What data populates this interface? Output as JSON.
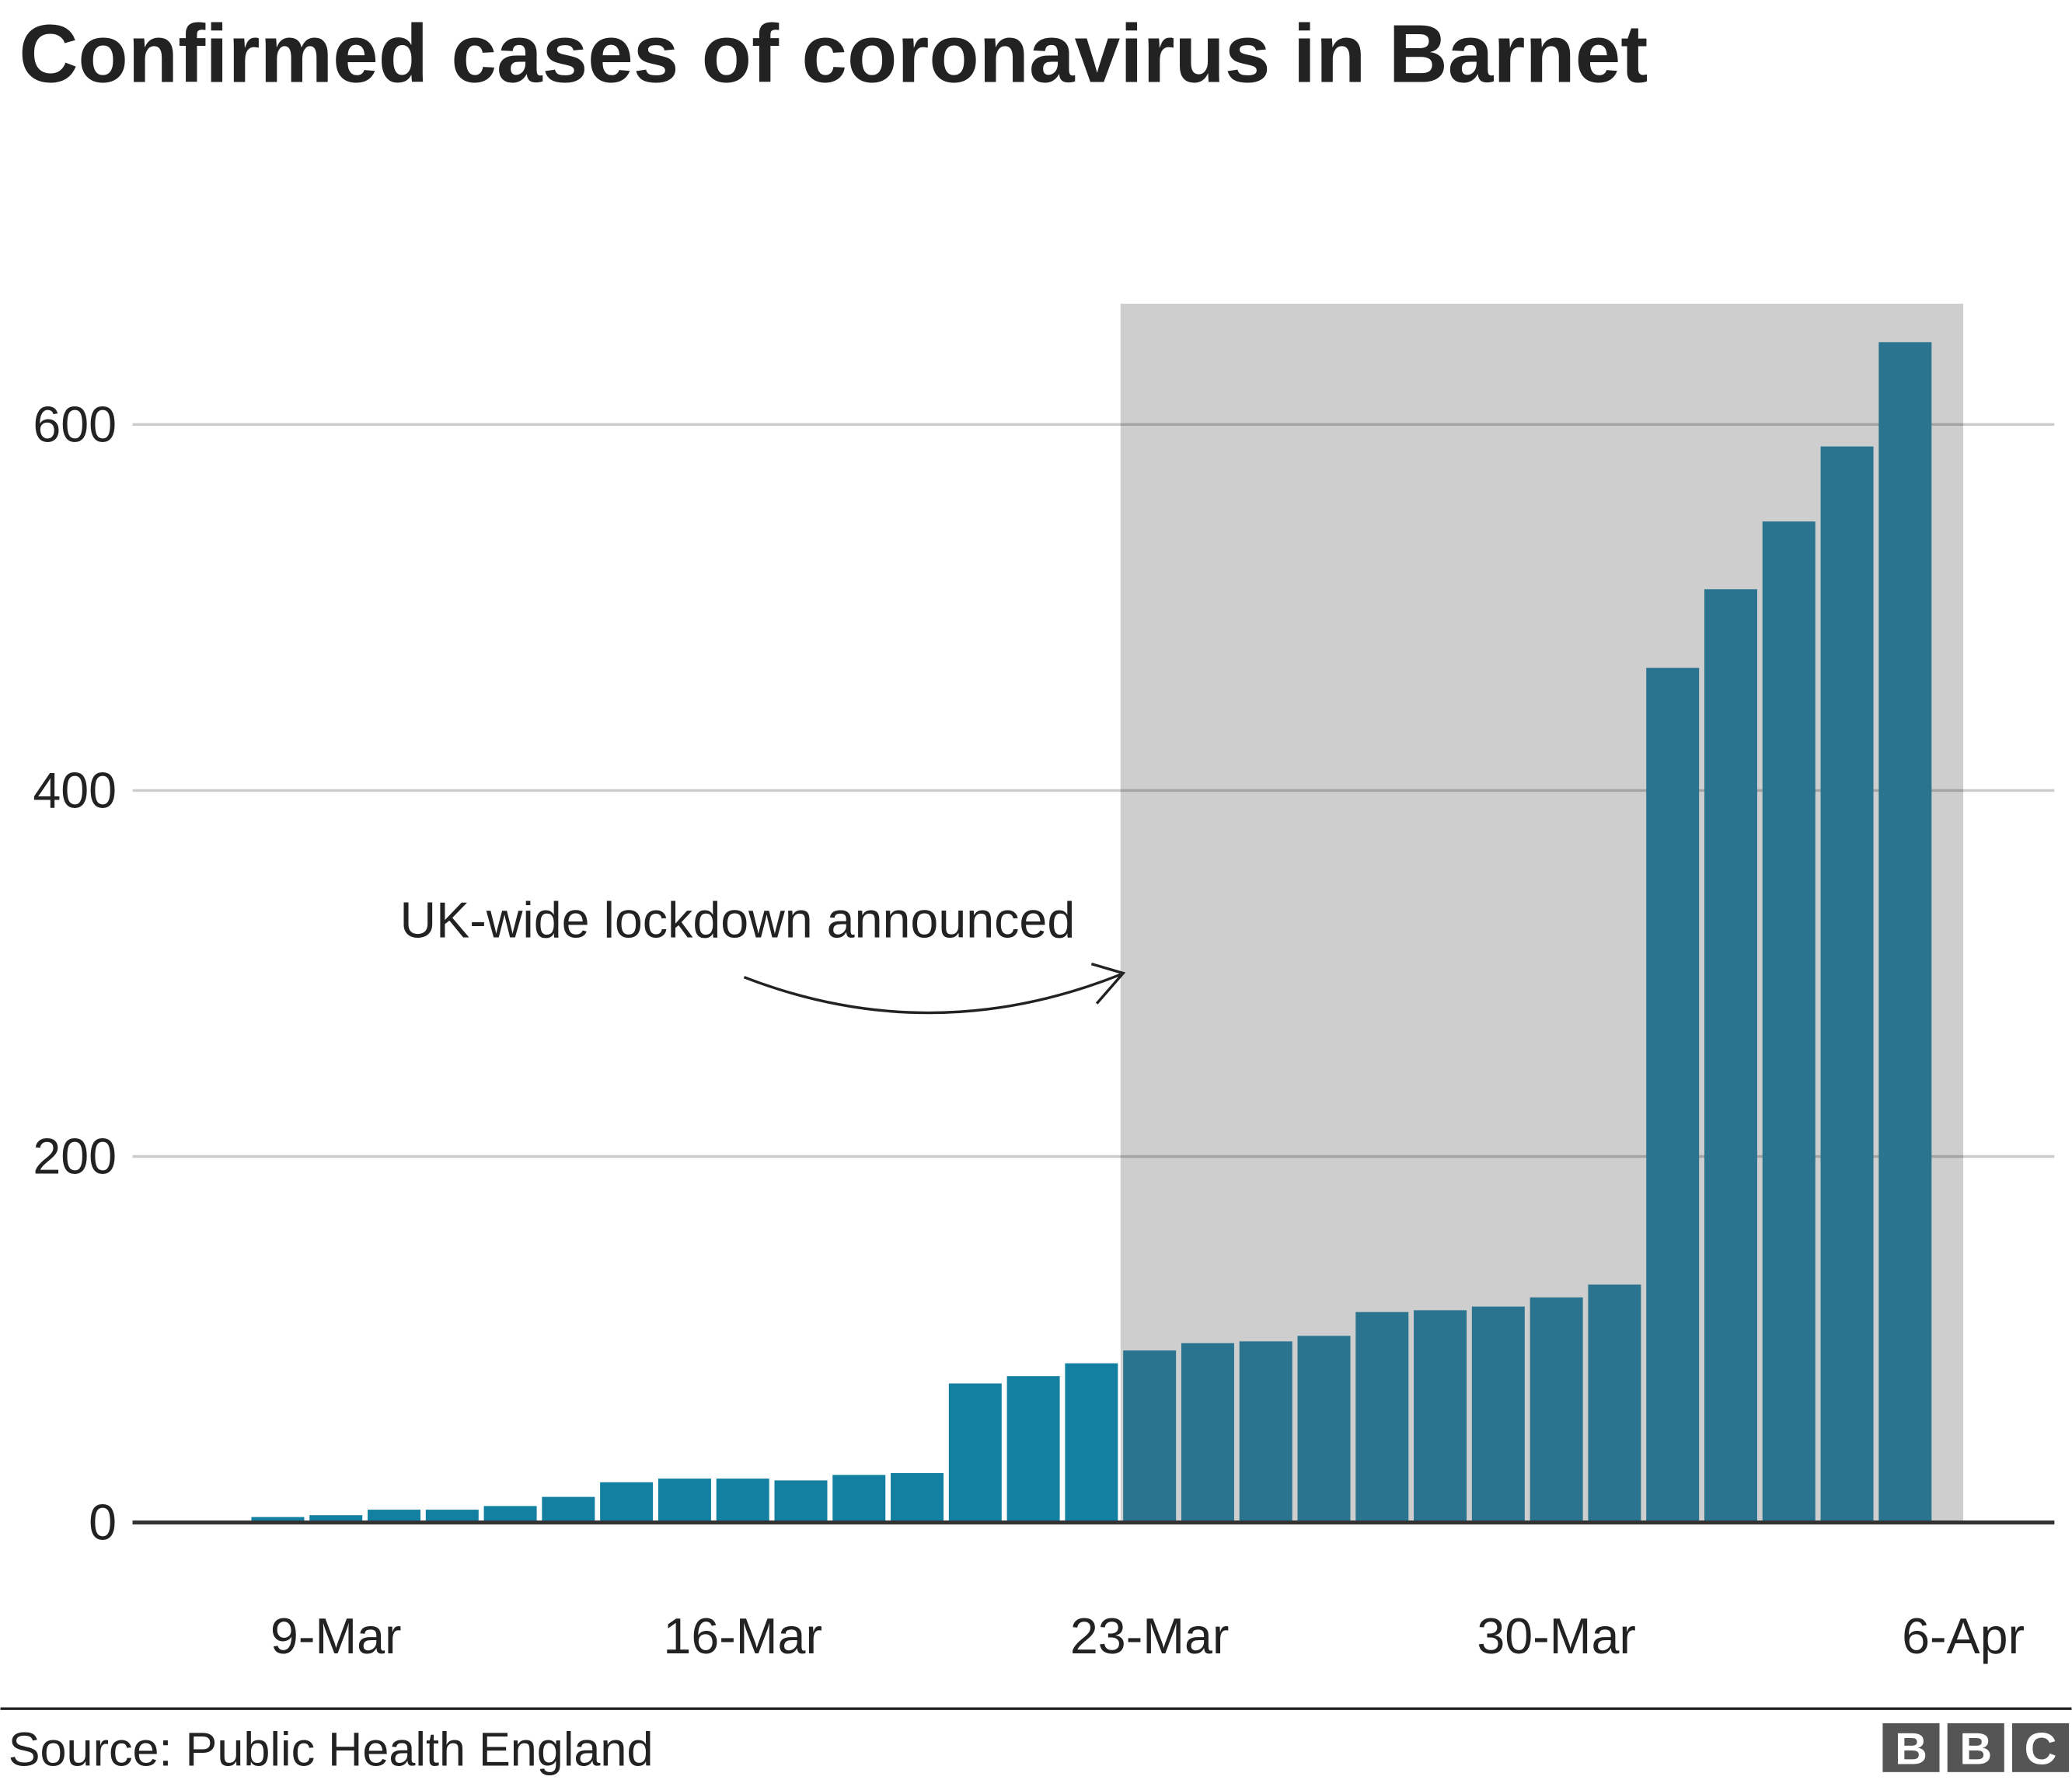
{
  "chart_data": {
    "type": "bar",
    "title": "Confirmed cases of coronavirus in Barnet",
    "categories": [
      null,
      null,
      null,
      "9-Mar",
      null,
      null,
      null,
      null,
      null,
      null,
      "16-Mar",
      null,
      null,
      null,
      null,
      null,
      null,
      "23-Mar",
      null,
      null,
      null,
      null,
      null,
      null,
      "30-Mar",
      null,
      null,
      null,
      null,
      null,
      null,
      "6-Apr"
    ],
    "values": [
      0,
      0,
      3,
      4,
      7,
      7,
      9,
      14,
      22,
      24,
      24,
      23,
      26,
      27,
      76,
      80,
      87,
      94,
      98,
      99,
      102,
      115,
      116,
      118,
      123,
      130,
      467,
      510,
      547,
      588,
      645,
      null
    ],
    "color": "#1380a1",
    "highlight_color": "#2a7490",
    "shaded_range": [
      "23-Mar",
      "6-Apr"
    ],
    "shade_color": "#cecece",
    "annotation": "UK-wide lockdown announced",
    "ylim": [
      0,
      666
    ],
    "yticks": [
      0,
      200,
      400,
      600
    ],
    "grid": true,
    "source": "Source: Public Health England",
    "logo": [
      "B",
      "B",
      "C"
    ]
  }
}
